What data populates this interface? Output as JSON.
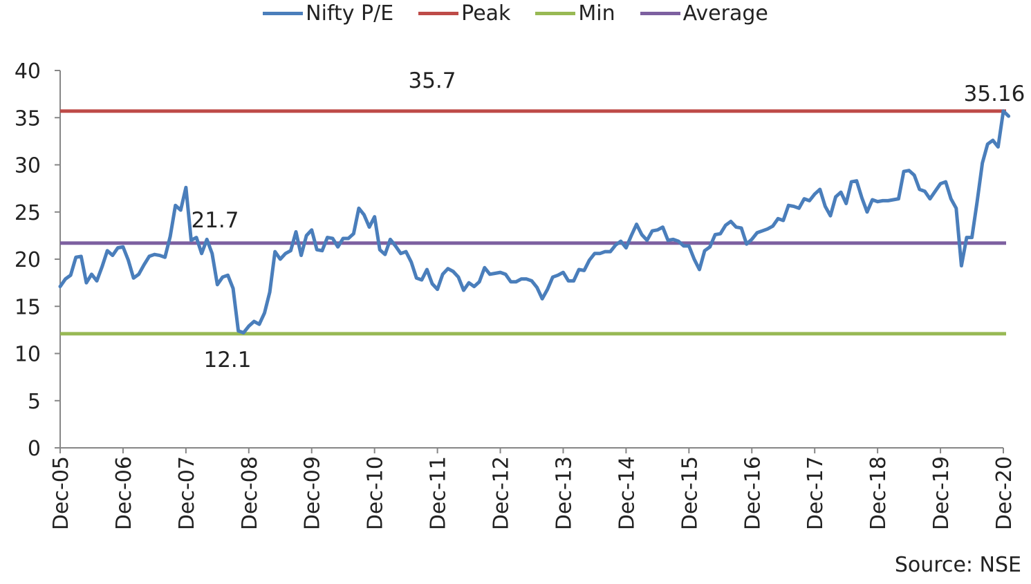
{
  "chart_data": {
    "type": "line",
    "title": "",
    "xlabel": "",
    "ylabel": "",
    "ylim": [
      0,
      40
    ],
    "yticks": [
      "0",
      "5",
      "10",
      "15",
      "20",
      "25",
      "30",
      "35",
      "40"
    ],
    "xticks": [
      "Dec-05",
      "Dec-06",
      "Dec-07",
      "Dec-08",
      "Dec-09",
      "Dec-10",
      "Dec-11",
      "Dec-12",
      "Dec-13",
      "Dec-14",
      "Dec-15",
      "Dec-16",
      "Dec-17",
      "Dec-18",
      "Dec-19",
      "Dec-20"
    ],
    "grid": false,
    "legend_position": "top-center",
    "series": [
      {
        "name": "Nifty P/E",
        "color": "#4A7EBB",
        "x_start": "Dec-05",
        "frequency": "monthly",
        "values": [
          17.1,
          17.9,
          18.3,
          20.2,
          20.3,
          17.5,
          18.4,
          17.7,
          19.2,
          20.9,
          20.4,
          21.2,
          21.3,
          19.9,
          18.0,
          18.4,
          19.4,
          20.3,
          20.5,
          20.4,
          20.2,
          22.4,
          25.7,
          25.2,
          27.6,
          22.0,
          22.3,
          20.6,
          22.1,
          20.6,
          17.3,
          18.1,
          18.3,
          16.9,
          12.4,
          12.2,
          12.9,
          13.4,
          13.1,
          14.3,
          16.5,
          20.8,
          20.0,
          20.6,
          20.9,
          22.9,
          20.4,
          22.5,
          23.1,
          21.0,
          20.9,
          22.3,
          22.2,
          21.3,
          22.2,
          22.2,
          22.7,
          25.4,
          24.7,
          23.4,
          24.5,
          21.0,
          20.5,
          22.1,
          21.4,
          20.6,
          20.8,
          19.7,
          18.0,
          17.8,
          18.9,
          17.4,
          16.8,
          18.4,
          19.0,
          18.7,
          18.1,
          16.7,
          17.5,
          17.1,
          17.6,
          19.1,
          18.4,
          18.5,
          18.6,
          18.4,
          17.6,
          17.6,
          17.9,
          17.9,
          17.7,
          17.0,
          15.8,
          16.8,
          18.1,
          18.3,
          18.6,
          17.7,
          17.7,
          18.9,
          18.8,
          19.9,
          20.6,
          20.6,
          20.8,
          20.8,
          21.5,
          21.9,
          21.2,
          22.5,
          23.7,
          22.6,
          22.0,
          23.0,
          23.1,
          23.4,
          22.0,
          22.1,
          21.9,
          21.4,
          21.4,
          20.0,
          18.9,
          20.9,
          21.3,
          22.6,
          22.7,
          23.6,
          24.0,
          23.4,
          23.3,
          21.6,
          22.1,
          22.8,
          23.0,
          23.2,
          23.5,
          24.3,
          24.1,
          25.7,
          25.6,
          25.4,
          26.4,
          26.2,
          26.9,
          27.4,
          25.6,
          24.6,
          26.6,
          27.1,
          25.9,
          28.2,
          28.3,
          26.5,
          25.0,
          26.3,
          26.1,
          26.2,
          26.2,
          26.3,
          26.4,
          29.3,
          29.4,
          28.9,
          27.4,
          27.2,
          26.4,
          27.2,
          28.0,
          28.2,
          26.4,
          25.4,
          19.3,
          22.3,
          22.3,
          26.1,
          30.2,
          32.2,
          32.6,
          31.9,
          35.7,
          35.16
        ]
      },
      {
        "name": "Peak",
        "color": "#BE4B48",
        "value": 35.7
      },
      {
        "name": "Min",
        "color": "#98B954",
        "value": 12.1
      },
      {
        "name": "Average",
        "color": "#7D60A0",
        "value": 21.7
      }
    ],
    "annotations": [
      {
        "text": "35.7",
        "refers_to": "Peak"
      },
      {
        "text": "21.7",
        "refers_to": "Average"
      },
      {
        "text": "12.1",
        "refers_to": "Min"
      },
      {
        "text": "35.16",
        "refers_to": "Nifty P/E last value"
      }
    ]
  },
  "source": "Source: NSE"
}
